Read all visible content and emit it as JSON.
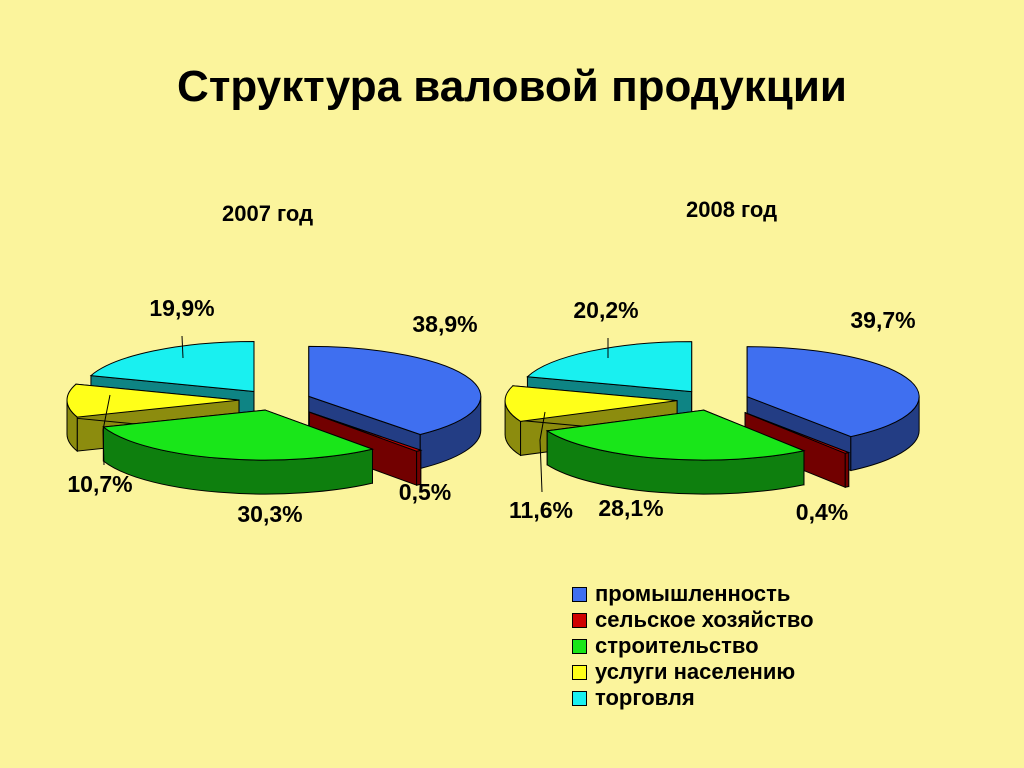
{
  "title": "Структура валовой продукции",
  "colors": {
    "промышленность": "#3F6FF0",
    "сельское хозяйство": "#D00000",
    "строительство": "#19E619",
    "услуги населению": "#FFFF19",
    "торговля": "#19F0F0"
  },
  "chart_data": [
    {
      "type": "pie",
      "title": "2007 год",
      "categories": [
        "промышленность",
        "сельское хозяйство",
        "строительство",
        "услуги населению",
        "торговля"
      ],
      "values": [
        38.9,
        0.5,
        30.3,
        10.7,
        19.9
      ],
      "data_labels": [
        "38,9%",
        "0,5%",
        "30,3%",
        "10,7%",
        "19,9%"
      ]
    },
    {
      "type": "pie",
      "title": "2008 год",
      "categories": [
        "промышленность",
        "сельское хозяйство",
        "строительство",
        "услуги населению",
        "торговля"
      ],
      "values": [
        39.7,
        0.4,
        28.1,
        11.6,
        20.2
      ],
      "data_labels": [
        "39,7%",
        "0,4%",
        "28,1%",
        "11,6%",
        "20,2%"
      ]
    }
  ],
  "legend": {
    "items": [
      "промышленность",
      "сельское хозяйство",
      "строительство",
      "услуги населению",
      "торговля"
    ]
  }
}
